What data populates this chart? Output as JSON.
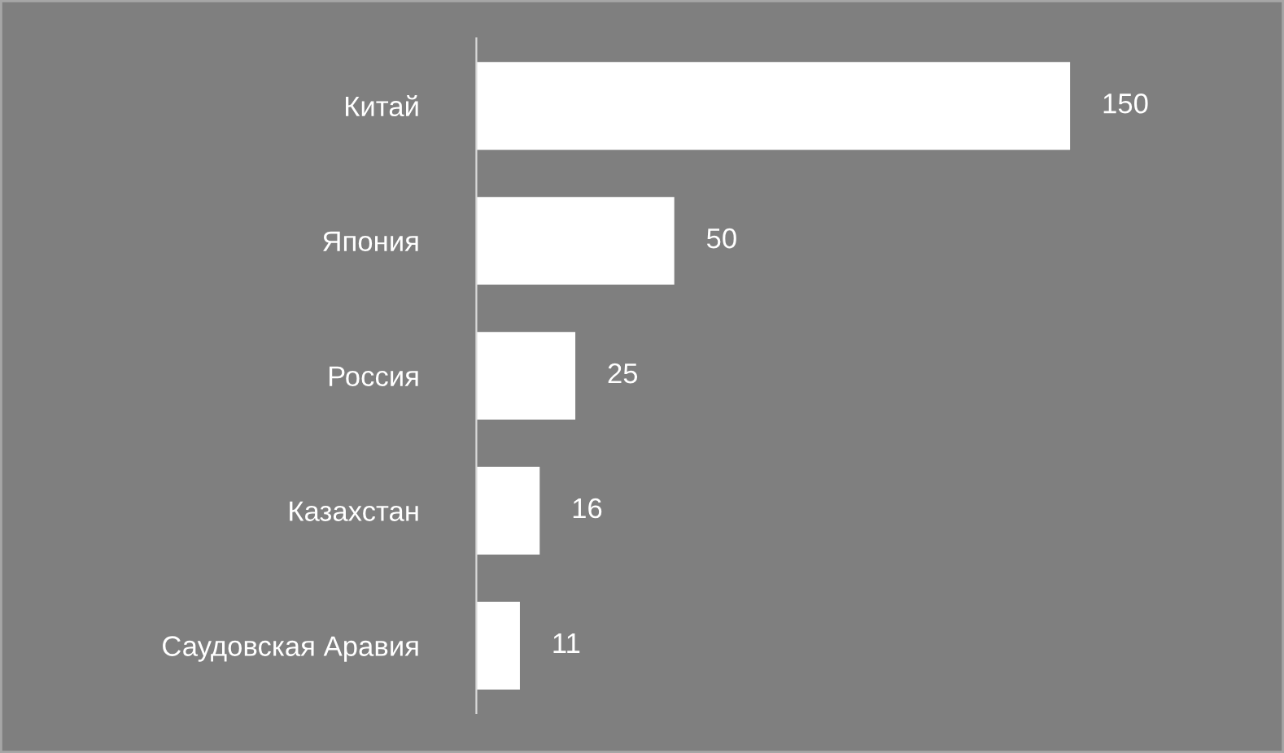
{
  "chart_data": {
    "type": "bar",
    "orientation": "horizontal",
    "categories": [
      "Китай",
      "Япония",
      "Россия",
      "Казахстан",
      "Саудовская Аравия"
    ],
    "values": [
      150,
      50,
      25,
      16,
      11
    ],
    "color": "#ffffff",
    "data_labels": true,
    "grid": false,
    "legend": false,
    "tick_labels": "y"
  }
}
